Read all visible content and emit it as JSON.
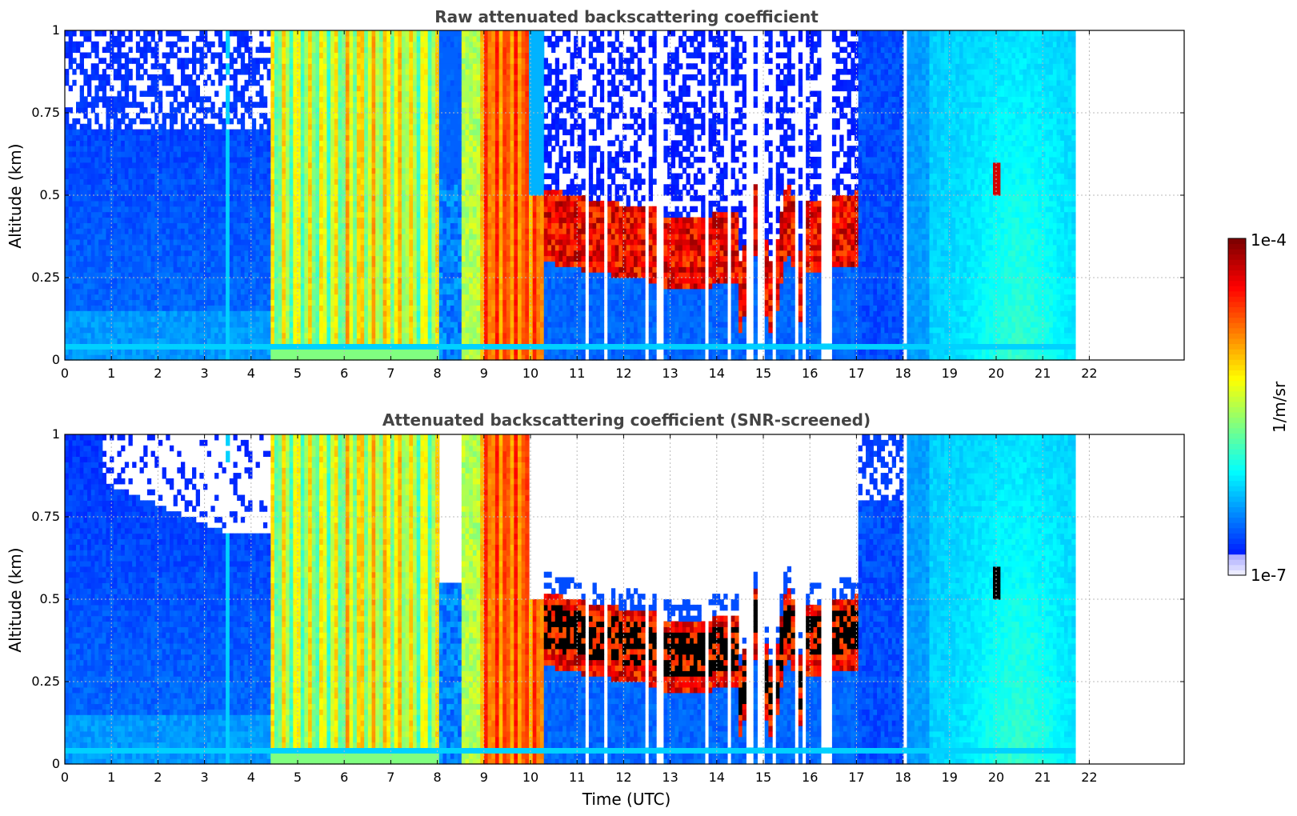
{
  "chart_data": [
    {
      "type": "heatmap",
      "title": "Raw attenuated backscattering coefficient",
      "ylabel": "Altitude (km)",
      "xlabel": "",
      "xlim": [
        0,
        24
      ],
      "ylim": [
        0,
        1
      ],
      "x_ticks": [
        "0",
        "1",
        "2",
        "3",
        "4",
        "5",
        "6",
        "7",
        "8",
        "9",
        "10",
        "11",
        "12",
        "13",
        "14",
        "15",
        "16",
        "17",
        "18",
        "19",
        "20",
        "21",
        "22"
      ],
      "y_ticks": [
        "0",
        "0.25",
        "0.5",
        "0.75",
        "1"
      ],
      "grid": true,
      "data_end_hour": 21.7,
      "screened": false
    },
    {
      "type": "heatmap",
      "title": "Attenuated backscattering coefficient (SNR-screened)",
      "ylabel": "Altitude (km)",
      "xlabel": "Time (UTC)",
      "xlim": [
        0,
        24
      ],
      "ylim": [
        0,
        1
      ],
      "x_ticks": [
        "0",
        "1",
        "2",
        "3",
        "4",
        "5",
        "6",
        "7",
        "8",
        "9",
        "10",
        "11",
        "12",
        "13",
        "14",
        "15",
        "16",
        "17",
        "18",
        "19",
        "20",
        "21",
        "22"
      ],
      "y_ticks": [
        "0",
        "0.25",
        "0.5",
        "0.75",
        "1"
      ],
      "grid": true,
      "data_end_hour": 21.7,
      "screened": true
    }
  ],
  "colorbar": {
    "label": "1/m/sr",
    "max_label": "1e-4",
    "min_label": "1e-7",
    "scale": "log",
    "colormap": "jet"
  },
  "colors": {
    "title": "#444444",
    "grid": "#bbbbbb",
    "no_data": "#ffffff",
    "above_max": "#000000"
  }
}
